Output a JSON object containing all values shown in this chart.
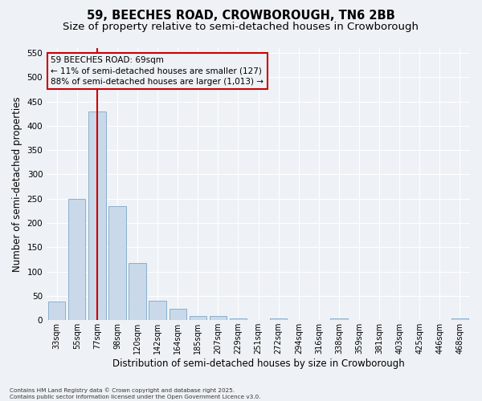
{
  "title": "59, BEECHES ROAD, CROWBOROUGH, TN6 2BB",
  "subtitle": "Size of property relative to semi-detached houses in Crowborough",
  "xlabel": "Distribution of semi-detached houses by size in Crowborough",
  "ylabel": "Number of semi-detached properties",
  "categories": [
    "33sqm",
    "55sqm",
    "77sqm",
    "98sqm",
    "120sqm",
    "142sqm",
    "164sqm",
    "185sqm",
    "207sqm",
    "229sqm",
    "251sqm",
    "272sqm",
    "294sqm",
    "316sqm",
    "338sqm",
    "359sqm",
    "381sqm",
    "403sqm",
    "425sqm",
    "446sqm",
    "468sqm"
  ],
  "values": [
    38,
    250,
    430,
    235,
    118,
    40,
    23,
    8,
    8,
    4,
    0,
    4,
    0,
    0,
    4,
    0,
    0,
    0,
    0,
    0,
    4
  ],
  "bar_color": "#c9d9ea",
  "bar_edge_color": "#8ab0cc",
  "background_color": "#eef2f6",
  "grid_color": "#ffffff",
  "vline_x_index": 2,
  "vline_color": "#cc0000",
  "annotation_text": "59 BEECHES ROAD: 69sqm\n← 11% of semi-detached houses are smaller (127)\n88% of semi-detached houses are larger (1,013) →",
  "ylim": [
    0,
    560
  ],
  "yticks": [
    0,
    50,
    100,
    150,
    200,
    250,
    300,
    350,
    400,
    450,
    500,
    550
  ],
  "title_fontsize": 10.5,
  "subtitle_fontsize": 9.5,
  "tick_fontsize": 7,
  "ylabel_fontsize": 8.5,
  "xlabel_fontsize": 8.5,
  "annotation_fontsize": 7.5,
  "footer_line1": "Contains HM Land Registry data © Crown copyright and database right 2025.",
  "footer_line2": "Contains public sector information licensed under the Open Government Licence v3.0."
}
